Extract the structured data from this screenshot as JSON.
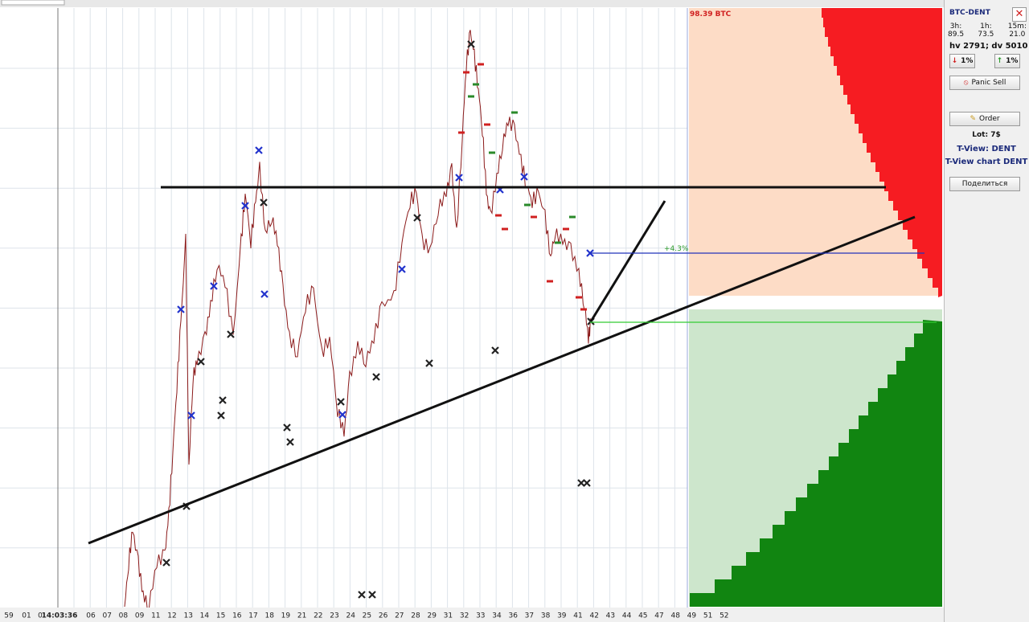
{
  "chart": {
    "balance_label": "98.39 BTC",
    "target_label": "+4.3%",
    "x_labels": [
      "59",
      "01",
      "0",
      "14:03:36",
      "06",
      "07",
      "08",
      "09",
      "11",
      "12",
      "13",
      "14",
      "15",
      "16",
      "17",
      "18",
      "19",
      "21",
      "22",
      "23",
      "24",
      "25",
      "26",
      "27",
      "28",
      "29",
      "31",
      "32",
      "33",
      "34",
      "36",
      "37",
      "38",
      "39",
      "41",
      "42",
      "43",
      "44",
      "45",
      "47",
      "48",
      "49",
      "51",
      "52"
    ]
  },
  "sidebar": {
    "pair": "BTC-DENT",
    "intervals": [
      {
        "label": "3h:",
        "value": "89.5"
      },
      {
        "label": "1h:",
        "value": "73.5"
      },
      {
        "label": "15m:",
        "value": "21.0"
      }
    ],
    "volume": "hv 2791; dv 5010",
    "down_pct": "1%",
    "up_pct": "1%",
    "panic_sell": "Panic Sell",
    "order": "Order",
    "lot": "Lot: 7$",
    "tview": "T-View: DENT",
    "tview_chart": "T-View chart DENT",
    "share": "Поделиться"
  }
}
